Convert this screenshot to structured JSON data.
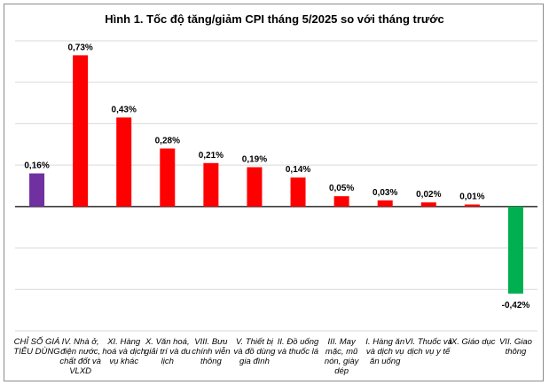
{
  "chart_data": {
    "type": "bar",
    "title": "Hình 1. Tốc độ tăng/giảm CPI tháng 5/2025 so với tháng trước",
    "xlabel": "",
    "ylabel": "",
    "ylim": [
      -0.6,
      0.8
    ],
    "grid": true,
    "categories": [
      "CHỈ SỐ GIÁ TIÊU DÙNG",
      "IV. Nhà ở, điện nước, chất đốt và VLXD",
      "XI. Hàng hoá và dịch vụ khác",
      "X. Văn hoá, giải trí và du lịch",
      "VIII. Bưu chính viễn thông",
      "V. Thiết bị và đồ dùng gia đình",
      "II. Đồ uống và thuốc lá",
      "III. May mặc, mũ nón, giày dép",
      "I. Hàng ăn và dịch vụ ăn uống",
      "VI. Thuốc và dịch vụ y tế",
      "IX. Giáo dục",
      "VII. Giao thông"
    ],
    "values": [
      0.16,
      0.73,
      0.43,
      0.28,
      0.21,
      0.19,
      0.14,
      0.05,
      0.03,
      0.02,
      0.01,
      -0.42
    ],
    "labels": [
      "0,16%",
      "0,73%",
      "0,43%",
      "0,28%",
      "0,21%",
      "0,19%",
      "0,14%",
      "0,05%",
      "0,03%",
      "0,02%",
      "0,01%",
      "-0,42%"
    ],
    "colors": {
      "total": "#7030a0",
      "positive": "#ff0000",
      "negative": "#00b050",
      "grid": "#d9d9d9",
      "axis": "#000000"
    }
  }
}
